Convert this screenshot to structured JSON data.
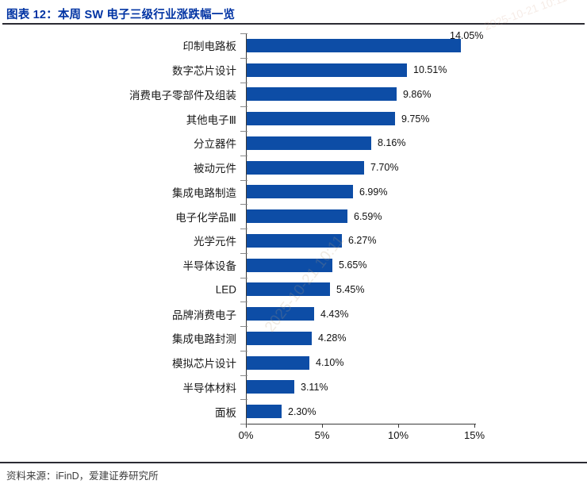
{
  "header": {
    "title": "图表 12：本周 SW 电子三级行业涨跌幅一览"
  },
  "footer": {
    "source": "资料来源：iFinD，爱建证券研究所"
  },
  "watermark": {
    "text": "2025-10-21 10:11"
  },
  "colors": {
    "bar": "#0d4da6",
    "title": "#0033a3",
    "axis": "#3a3a3a",
    "rule": "#2b2b33"
  },
  "chart_data": {
    "type": "bar",
    "orientation": "horizontal",
    "title": "本周 SW 电子三级行业涨跌幅一览",
    "xlabel": "",
    "ylabel": "",
    "xlim": [
      0,
      15
    ],
    "x_ticks": [
      "0%",
      "5%",
      "10%",
      "15%"
    ],
    "x_tick_values": [
      0,
      5,
      10,
      15
    ],
    "grid": false,
    "legend": "none",
    "categories": [
      "印制电路板",
      "数字芯片设计",
      "消费电子零部件及组装",
      "其他电子Ⅲ",
      "分立器件",
      "被动元件",
      "集成电路制造",
      "电子化学品Ⅲ",
      "光学元件",
      "半导体设备",
      "LED",
      "品牌消费电子",
      "集成电路封测",
      "模拟芯片设计",
      "半导体材料",
      "面板"
    ],
    "values": [
      14.05,
      10.51,
      9.86,
      9.75,
      8.16,
      7.7,
      6.99,
      6.59,
      6.27,
      5.65,
      5.45,
      4.43,
      4.28,
      4.1,
      3.11,
      2.3
    ],
    "value_labels": [
      "14.05%",
      "10.51%",
      "9.86%",
      "9.75%",
      "8.16%",
      "7.70%",
      "6.99%",
      "6.59%",
      "6.27%",
      "5.65%",
      "5.45%",
      "4.43%",
      "4.28%",
      "4.10%",
      "3.11%",
      "2.30%"
    ]
  }
}
